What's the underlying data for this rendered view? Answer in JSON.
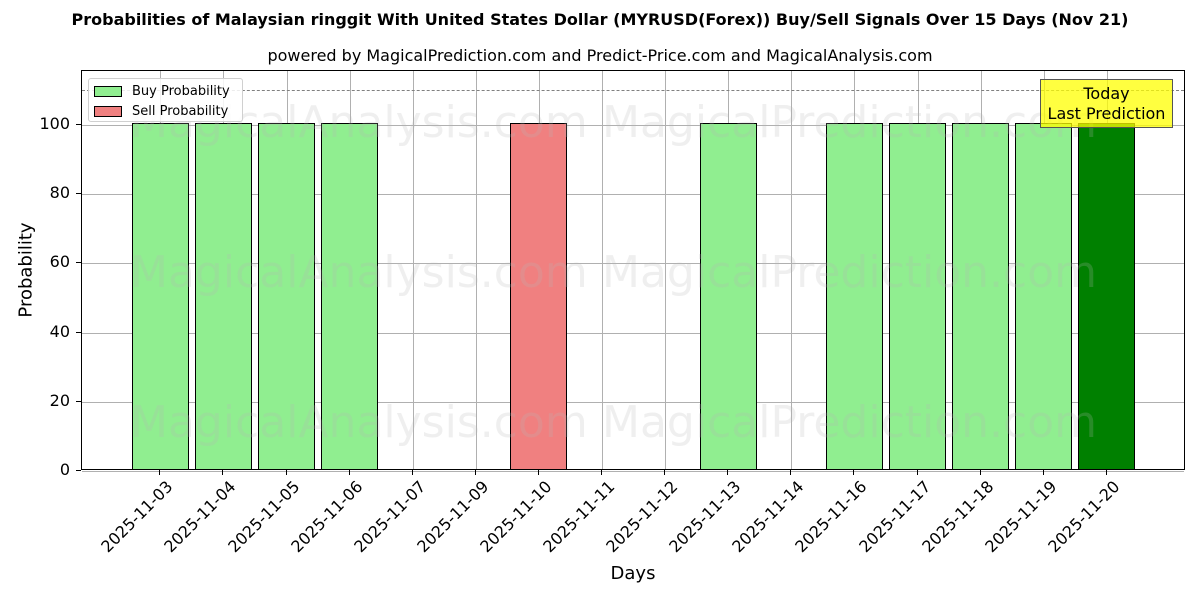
{
  "chart_data": {
    "type": "bar",
    "title": "Probabilities of Malaysian ringgit With United States Dollar (MYRUSD(Forex)) Buy/Sell Signals Over 15 Days (Nov 21)",
    "subtitle": "powered by MagicalPrediction.com and Predict-Price.com and MagicalAnalysis.com",
    "xlabel": "Days",
    "ylabel": "Probability",
    "ylim": [
      0,
      115.6
    ],
    "yticks": [
      0,
      20,
      40,
      60,
      80,
      100
    ],
    "grid": true,
    "legend_position": "upper left",
    "categories": [
      "2025-11-03",
      "2025-11-04",
      "2025-11-05",
      "2025-11-06",
      "2025-11-07",
      "2025-11-09",
      "2025-11-10",
      "2025-11-11",
      "2025-11-12",
      "2025-11-13",
      "2025-11-14",
      "2025-11-16",
      "2025-11-17",
      "2025-11-18",
      "2025-11-19",
      "2025-11-20"
    ],
    "series": [
      {
        "name": "Buy Probability",
        "color": "#90ee90",
        "values": [
          100,
          100,
          100,
          100,
          0,
          0,
          0,
          0,
          0,
          100,
          0,
          100,
          100,
          100,
          100,
          100
        ]
      },
      {
        "name": "Sell Probability",
        "color": "#f08080",
        "values": [
          0,
          0,
          0,
          0,
          0,
          0,
          100,
          0,
          0,
          0,
          0,
          0,
          0,
          0,
          0,
          0
        ]
      }
    ],
    "highlight": {
      "category": "2025-11-20",
      "color": "#008000"
    },
    "reference_line": {
      "value": 110,
      "style": "dashed",
      "color": "#808080"
    },
    "annotation": {
      "line1": "Today",
      "line2": "Last Prediction",
      "background": "#ffff00"
    },
    "watermarks": [
      "MagicalAnalysis.com",
      "MagicalPrediction.com"
    ]
  },
  "legend": {
    "buy_label": "Buy Probability",
    "sell_label": "Sell Probability"
  },
  "yaxis": {
    "ticks": [
      "0",
      "20",
      "40",
      "60",
      "80",
      "100"
    ]
  },
  "colors": {
    "buy": "#90ee90",
    "sell": "#f08080",
    "today": "#008000"
  }
}
